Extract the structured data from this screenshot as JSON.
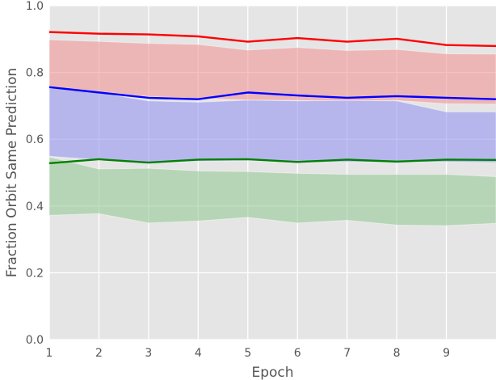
{
  "chart_data": {
    "type": "line",
    "title": "",
    "xlabel": "Epoch",
    "ylabel": "Fraction Orbit Same Prediction",
    "x": [
      1,
      2,
      3,
      4,
      5,
      6,
      7,
      8,
      9,
      10
    ],
    "xlim": [
      1,
      10
    ],
    "ylim": [
      0,
      1
    ],
    "xticks": [
      "1",
      "2",
      "3",
      "4",
      "5",
      "6",
      "7",
      "8",
      "9"
    ],
    "yticks": [
      "0.0",
      "0.2",
      "0.4",
      "0.6",
      "0.8",
      "1.0"
    ],
    "grid": true,
    "legend": "none",
    "background": "#e5e5e5",
    "series": [
      {
        "color": "#ff0000",
        "band_color": "#f29999",
        "values": [
          0.921,
          0.916,
          0.914,
          0.908,
          0.892,
          0.903,
          0.892,
          0.901,
          0.882,
          0.879
        ],
        "upper": [
          0.898,
          0.893,
          0.887,
          0.884,
          0.867,
          0.875,
          0.866,
          0.869,
          0.856,
          0.855
        ],
        "lower": [
          0.755,
          0.742,
          0.728,
          0.722,
          0.717,
          0.716,
          0.715,
          0.716,
          0.706,
          0.705
        ]
      },
      {
        "color": "#0000ff",
        "band_color": "#9999f2",
        "values": [
          0.756,
          0.74,
          0.724,
          0.72,
          0.74,
          0.731,
          0.724,
          0.729,
          0.724,
          0.72
        ],
        "upper": [
          0.753,
          0.739,
          0.715,
          0.711,
          0.717,
          0.715,
          0.716,
          0.715,
          0.682,
          0.682
        ],
        "lower": [
          0.549,
          0.538,
          0.53,
          0.534,
          0.536,
          0.53,
          0.532,
          0.531,
          0.532,
          0.53
        ]
      },
      {
        "color": "#008000",
        "band_color": "#99cc99",
        "values": [
          0.528,
          0.54,
          0.53,
          0.539,
          0.54,
          0.532,
          0.539,
          0.533,
          0.539,
          0.538
        ],
        "upper": [
          0.547,
          0.511,
          0.513,
          0.505,
          0.503,
          0.498,
          0.495,
          0.495,
          0.495,
          0.488
        ],
        "lower": [
          0.372,
          0.377,
          0.349,
          0.355,
          0.366,
          0.349,
          0.357,
          0.343,
          0.341,
          0.348
        ]
      }
    ]
  }
}
